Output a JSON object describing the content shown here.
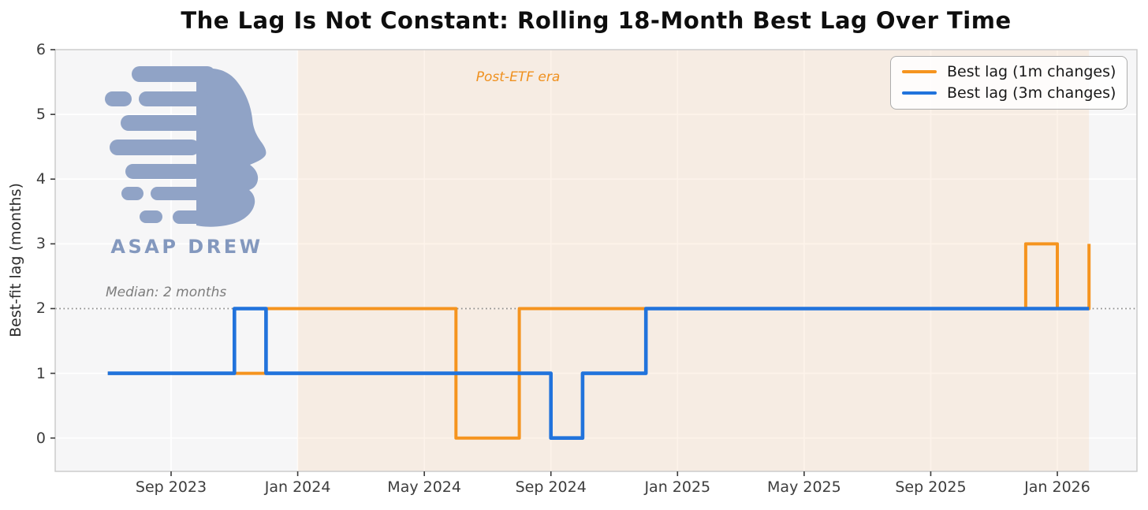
{
  "title": "The Lag Is Not Constant: Rolling 18-Month Best Lag Over Time",
  "branding": {
    "logo_text": "ASAP DREW",
    "logo_color": "#8da1c5",
    "logo_text_color": "#8095bd"
  },
  "chart_data": {
    "type": "line",
    "step": "post",
    "title": "The Lag Is Not Constant: Rolling 18-Month Best Lag Over Time",
    "xlabel": "",
    "ylabel": "Best-fit lag (months)",
    "x_months": [
      "2023-07",
      "2023-08",
      "2023-09",
      "2023-10",
      "2023-11",
      "2023-12",
      "2024-01",
      "2024-02",
      "2024-03",
      "2024-04",
      "2024-05",
      "2024-06",
      "2024-07",
      "2024-08",
      "2024-09",
      "2024-10",
      "2024-11",
      "2024-12",
      "2025-01",
      "2025-02",
      "2025-03",
      "2025-04",
      "2025-05",
      "2025-06",
      "2025-07",
      "2025-08",
      "2025-09",
      "2025-10",
      "2025-11",
      "2025-12",
      "2026-01",
      "2026-02"
    ],
    "series": [
      {
        "name": "Best lag (1m changes)",
        "color": "#f5941f",
        "values": [
          1,
          1,
          1,
          1,
          1,
          2,
          2,
          2,
          2,
          2,
          2,
          0,
          0,
          2,
          2,
          2,
          2,
          2,
          2,
          2,
          2,
          2,
          2,
          2,
          2,
          2,
          2,
          2,
          2,
          3,
          2,
          3
        ]
      },
      {
        "name": "Best lag (3m changes)",
        "color": "#2173dc",
        "values": [
          1,
          1,
          1,
          1,
          2,
          1,
          1,
          1,
          1,
          1,
          1,
          1,
          1,
          1,
          0,
          1,
          1,
          2,
          2,
          2,
          2,
          2,
          2,
          2,
          2,
          2,
          2,
          2,
          2,
          2,
          2,
          2
        ]
      }
    ],
    "xticks": [
      {
        "label": "Sep 2023",
        "month": "2023-09"
      },
      {
        "label": "Jan 2024",
        "month": "2024-01"
      },
      {
        "label": "May 2024",
        "month": "2024-05"
      },
      {
        "label": "Sep 2024",
        "month": "2024-09"
      },
      {
        "label": "Jan 2025",
        "month": "2025-01"
      },
      {
        "label": "May 2025",
        "month": "2025-05"
      },
      {
        "label": "Sep 2025",
        "month": "2025-09"
      },
      {
        "label": "Jan 2026",
        "month": "2026-01"
      }
    ],
    "yticks": [
      0,
      1,
      2,
      3,
      4,
      5,
      6
    ],
    "xlim": [
      2023.3615,
      2026.2096
    ],
    "ylim": [
      -0.515,
      6
    ],
    "grid": true,
    "legend_position": "upper right",
    "median_line": {
      "value": 2,
      "label": "Median: 2 months",
      "color": "#909090"
    },
    "shaded_region": {
      "label": "Post-ETF era",
      "from_month": "2024-01",
      "to_month": "2026-02",
      "fill": "#f4c9a0",
      "opacity": 0.22,
      "label_color": "#ef9120"
    }
  }
}
